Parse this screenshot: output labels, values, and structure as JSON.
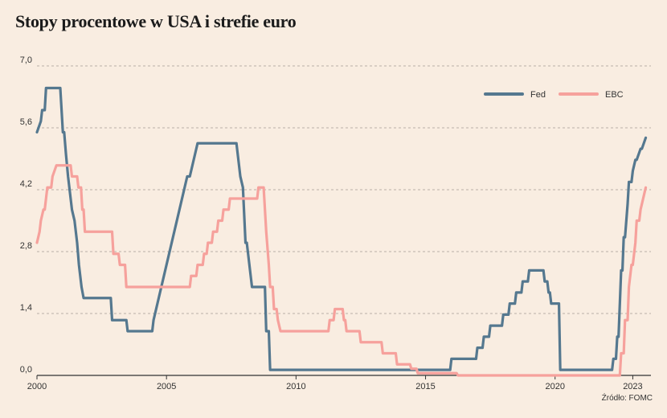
{
  "title": "Stopy procentowe w USA i strefie euro",
  "source": "Źródło: FOMC",
  "colors": {
    "fed": "#55788f",
    "ebc": "#f6a19c",
    "grid": "#b9b0a6",
    "axis": "#333333"
  },
  "chart_data": {
    "type": "line",
    "title": "Stopy procentowe w USA i strefie euro",
    "xlabel": "",
    "ylabel": "",
    "xlim": [
      2000.0,
      2023.7
    ],
    "ylim": [
      0,
      7.0
    ],
    "y_ticks": [
      0.0,
      1.4,
      2.8,
      4.2,
      5.6,
      7.0
    ],
    "y_tick_labels": [
      "0,0",
      "1,4",
      "2,8",
      "4,2",
      "5,6",
      "7,0"
    ],
    "x_ticks": [
      2000,
      2005,
      2010,
      2015,
      2020,
      2023
    ],
    "x_tick_labels": [
      "2000",
      "2005",
      "2010",
      "2015",
      "2020",
      "2023"
    ],
    "grid": "horizontal-dashed",
    "legend": "top-right",
    "series": [
      {
        "name": "Fed",
        "x": [
          2000.0,
          2000.15,
          2000.2,
          2000.3,
          2000.35,
          2000.55,
          2000.6,
          2000.9,
          2001.0,
          2001.05,
          2001.12,
          2001.2,
          2001.3,
          2001.35,
          2001.45,
          2001.55,
          2001.62,
          2001.72,
          2001.8,
          2001.85,
          2001.92,
          2001.97,
          2002.85,
          2002.9,
          2003.45,
          2003.5,
          2004.45,
          2004.5,
          2004.6,
          2004.7,
          2004.8,
          2004.9,
          2005.0,
          2005.1,
          2005.2,
          2005.3,
          2005.4,
          2005.5,
          2005.6,
          2005.7,
          2005.8,
          2005.9,
          2006.0,
          2006.1,
          2006.2,
          2006.3,
          2006.4,
          2006.5,
          2006.6,
          2007.7,
          2007.8,
          2007.85,
          2007.95,
          2008.05,
          2008.1,
          2008.25,
          2008.3,
          2008.35,
          2008.8,
          2008.85,
          2008.95,
          2009.0,
          2015.95,
          2016.0,
          2016.95,
          2017.0,
          2017.2,
          2017.25,
          2017.45,
          2017.5,
          2017.95,
          2018.0,
          2018.2,
          2018.25,
          2018.45,
          2018.5,
          2018.7,
          2018.75,
          2018.95,
          2019.0,
          2019.55,
          2019.6,
          2019.7,
          2019.75,
          2019.8,
          2019.85,
          2020.15,
          2020.2,
          2022.2,
          2022.25,
          2022.35,
          2022.4,
          2022.45,
          2022.5,
          2022.55,
          2022.6,
          2022.65,
          2022.7,
          2022.8,
          2022.85,
          2022.95,
          2023.0,
          2023.1,
          2023.15,
          2023.3,
          2023.35,
          2023.5
        ],
        "values": [
          5.5,
          5.75,
          6.0,
          6.0,
          6.5,
          6.5,
          6.5,
          6.5,
          5.5,
          5.5,
          5.0,
          4.5,
          4.0,
          3.75,
          3.5,
          3.0,
          2.5,
          2.0,
          1.75,
          1.75,
          1.75,
          1.75,
          1.75,
          1.25,
          1.25,
          1.0,
          1.0,
          1.25,
          1.5,
          1.75,
          2.0,
          2.25,
          2.5,
          2.75,
          3.0,
          3.25,
          3.5,
          3.75,
          4.0,
          4.25,
          4.5,
          4.5,
          4.75,
          5.0,
          5.25,
          5.25,
          5.25,
          5.25,
          5.25,
          5.25,
          4.75,
          4.5,
          4.25,
          3.0,
          3.0,
          2.25,
          2.0,
          2.0,
          2.0,
          1.0,
          1.0,
          0.125,
          0.125,
          0.375,
          0.375,
          0.625,
          0.625,
          0.875,
          0.875,
          1.125,
          1.125,
          1.375,
          1.375,
          1.625,
          1.625,
          1.875,
          1.875,
          2.125,
          2.125,
          2.375,
          2.375,
          2.125,
          2.125,
          1.875,
          1.875,
          1.625,
          1.625,
          0.125,
          0.125,
          0.375,
          0.375,
          0.875,
          0.875,
          1.625,
          2.375,
          2.375,
          3.125,
          3.125,
          3.875,
          4.375,
          4.375,
          4.625,
          4.875,
          4.875,
          5.125,
          5.125,
          5.375
        ]
      },
      {
        "name": "EBC",
        "x": [
          2000.0,
          2000.1,
          2000.15,
          2000.25,
          2000.3,
          2000.4,
          2000.45,
          2000.55,
          2000.6,
          2000.75,
          2000.8,
          2001.3,
          2001.35,
          2001.55,
          2001.6,
          2001.7,
          2001.75,
          2001.8,
          2001.85,
          2002.9,
          2002.95,
          2003.15,
          2003.2,
          2003.4,
          2003.45,
          2005.9,
          2005.95,
          2006.15,
          2006.2,
          2006.4,
          2006.45,
          2006.55,
          2006.6,
          2006.75,
          2006.8,
          2006.95,
          2007.0,
          2007.15,
          2007.2,
          2007.4,
          2007.45,
          2008.5,
          2008.55,
          2008.75,
          2008.8,
          2008.85,
          2008.95,
          2009.0,
          2009.1,
          2009.15,
          2009.25,
          2009.3,
          2009.4,
          2009.45,
          2011.25,
          2011.3,
          2011.45,
          2011.5,
          2011.8,
          2011.85,
          2011.9,
          2011.95,
          2012.45,
          2012.5,
          2013.3,
          2013.35,
          2013.85,
          2013.9,
          2014.4,
          2014.45,
          2014.65,
          2014.7,
          2016.2,
          2016.25,
          2022.5,
          2022.55,
          2022.65,
          2022.7,
          2022.8,
          2022.85,
          2022.95,
          2023.0,
          2023.1,
          2023.15,
          2023.25,
          2023.3,
          2023.5
        ],
        "values": [
          3.0,
          3.25,
          3.5,
          3.75,
          3.75,
          4.25,
          4.25,
          4.25,
          4.5,
          4.75,
          4.75,
          4.75,
          4.5,
          4.5,
          4.25,
          4.25,
          3.75,
          3.75,
          3.25,
          3.25,
          2.75,
          2.75,
          2.5,
          2.5,
          2.0,
          2.0,
          2.25,
          2.25,
          2.5,
          2.5,
          2.75,
          2.75,
          3.0,
          3.0,
          3.25,
          3.25,
          3.5,
          3.5,
          3.75,
          3.75,
          4.0,
          4.0,
          4.25,
          4.25,
          3.75,
          3.25,
          2.5,
          2.0,
          2.0,
          1.5,
          1.5,
          1.25,
          1.0,
          1.0,
          1.0,
          1.25,
          1.25,
          1.5,
          1.5,
          1.25,
          1.25,
          1.0,
          1.0,
          0.75,
          0.75,
          0.5,
          0.5,
          0.25,
          0.25,
          0.15,
          0.15,
          0.05,
          0.05,
          0.0,
          0.0,
          0.5,
          0.5,
          1.25,
          1.25,
          2.0,
          2.5,
          2.5,
          3.0,
          3.5,
          3.5,
          3.75,
          4.25
        ]
      }
    ]
  }
}
